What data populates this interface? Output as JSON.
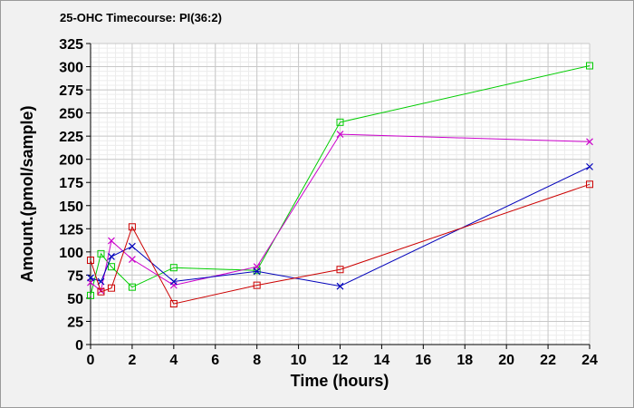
{
  "chart_data": {
    "type": "line",
    "title": "25-OHC Timecourse: PI(36:2)",
    "xlabel": "Time (hours)",
    "ylabel": "Amount.(pmol/sample)",
    "xlim": [
      0,
      24
    ],
    "ylim": [
      0,
      325
    ],
    "x_ticks": [
      0,
      2,
      4,
      6,
      8,
      10,
      12,
      14,
      16,
      18,
      20,
      22,
      24
    ],
    "y_ticks": [
      0,
      25,
      50,
      75,
      100,
      125,
      150,
      175,
      200,
      225,
      250,
      275,
      300,
      325
    ],
    "grid": true,
    "legend": "none",
    "series": [
      {
        "color": "#00cc00",
        "marker": "square",
        "x": [
          0,
          0.5,
          1,
          2,
          4,
          8,
          12,
          24
        ],
        "values": [
          53,
          98,
          84,
          62,
          83,
          80,
          240,
          301
        ]
      },
      {
        "color": "#cc00cc",
        "marker": "x",
        "x": [
          0,
          0.5,
          1,
          2,
          4,
          8,
          12,
          24
        ],
        "values": [
          67,
          58,
          112,
          92,
          64,
          84,
          227,
          219
        ]
      },
      {
        "color": "#0000bb",
        "marker": "x",
        "x": [
          0,
          0.5,
          1,
          2,
          4,
          8,
          12,
          24
        ],
        "values": [
          72,
          68,
          95,
          106,
          68,
          79,
          63,
          192
        ]
      },
      {
        "color": "#cc0000",
        "marker": "square",
        "x": [
          0,
          0.5,
          1,
          2,
          4,
          8,
          12,
          24
        ],
        "values": [
          91,
          57,
          61,
          127,
          44,
          64,
          81,
          173
        ]
      }
    ]
  }
}
